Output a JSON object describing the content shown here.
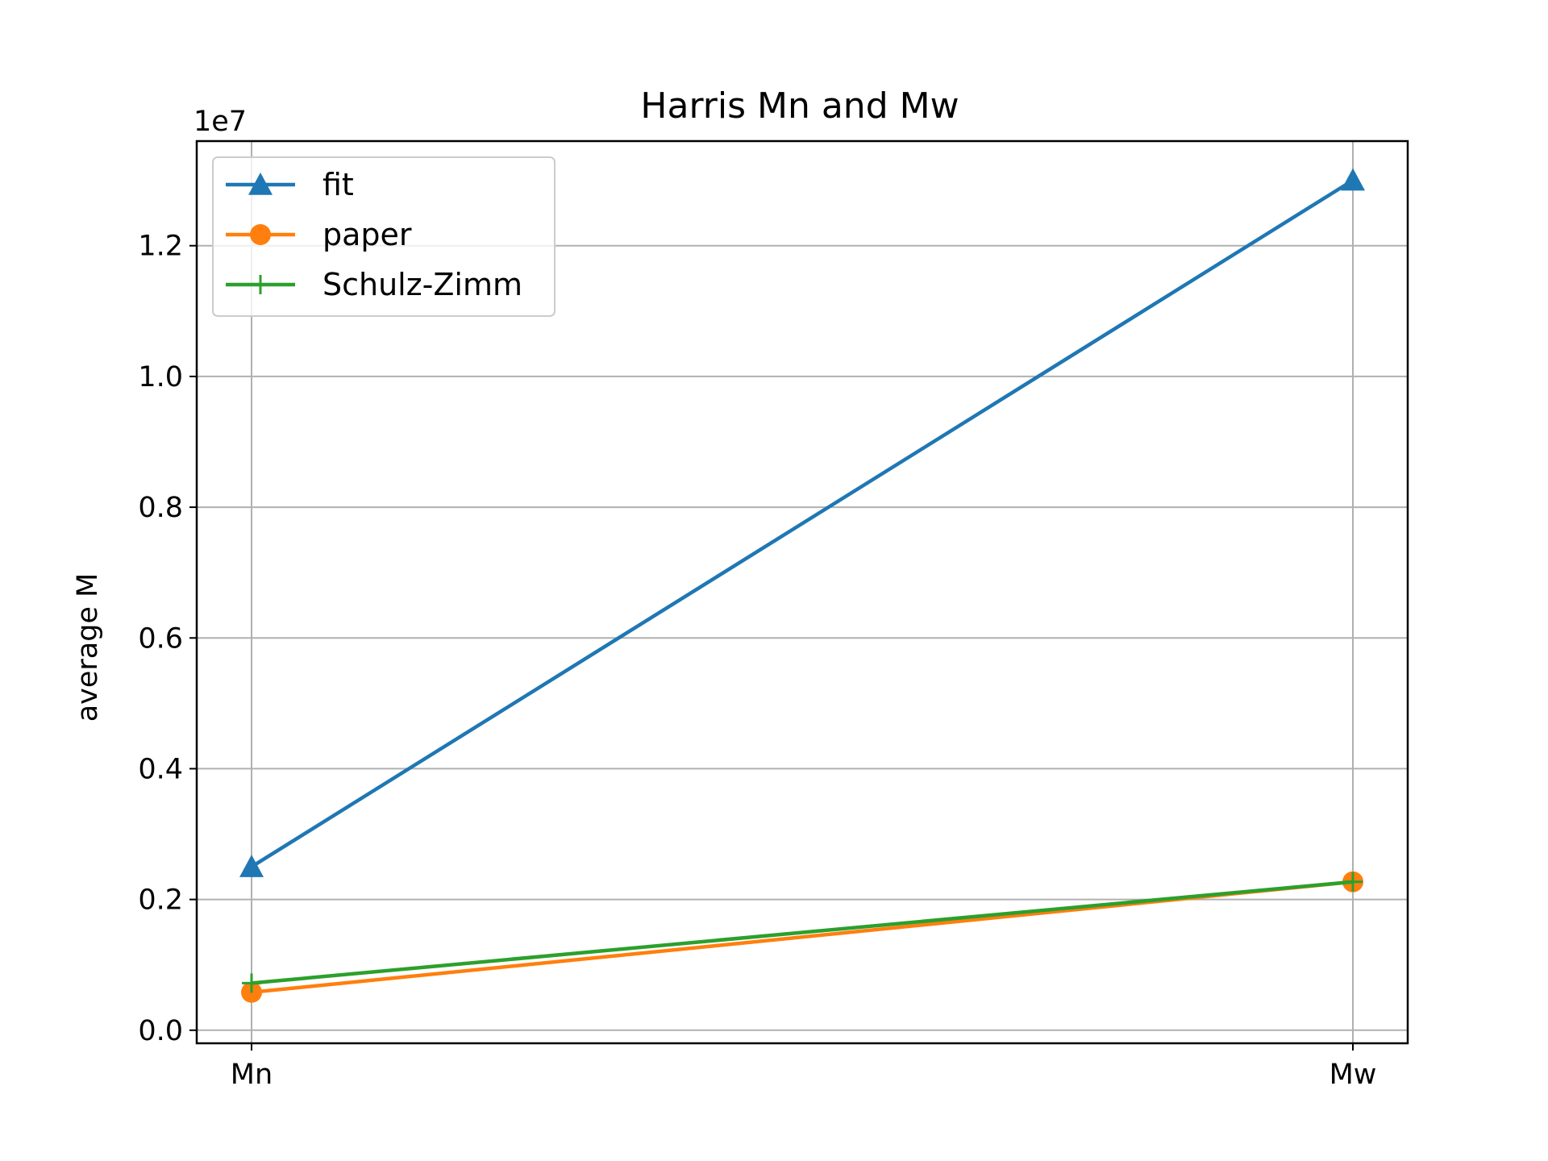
{
  "chart_data": {
    "type": "line",
    "title": "Harris Mn and Mw",
    "xlabel": "",
    "ylabel": "average M",
    "offset_label": "1e7",
    "categories": [
      "Mn",
      "Mw"
    ],
    "ylim": [
      -0.02,
      1.36
    ],
    "yticks": [
      0.0,
      0.2,
      0.4,
      0.6,
      0.8,
      1.0,
      1.2
    ],
    "ytick_labels": [
      "0.0",
      "0.2",
      "0.4",
      "0.6",
      "0.8",
      "1.0",
      "1.2"
    ],
    "grid": true,
    "legend_position": "top-left",
    "series": [
      {
        "name": "fit",
        "values": [
          0.25,
          1.3
        ],
        "color": "#1f77b4",
        "marker": "triangle"
      },
      {
        "name": "paper",
        "values": [
          0.058,
          0.227
        ],
        "color": "#ff7f0e",
        "marker": "circle"
      },
      {
        "name": "Schulz-Zimm",
        "values": [
          0.072,
          0.227
        ],
        "color": "#2ca02c",
        "marker": "plus"
      }
    ]
  }
}
